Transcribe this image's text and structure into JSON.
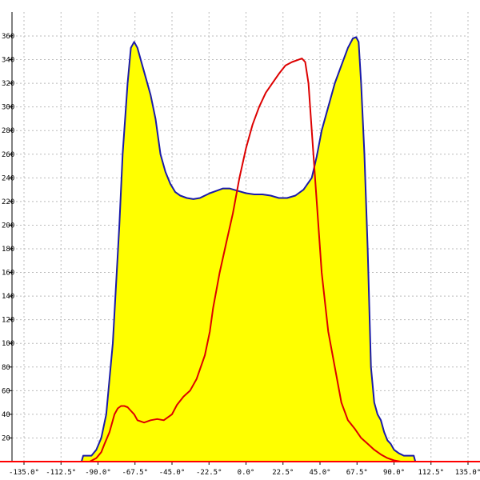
{
  "chart_data": {
    "type": "area",
    "title": "",
    "xlabel": "",
    "ylabel": "",
    "xlim": [
      -135,
      135
    ],
    "ylim": [
      0,
      380
    ],
    "grid": true,
    "x_ticks": [
      "-135.0°",
      "-112.5°",
      "-90.0°",
      "-67.5°",
      "-45.0°",
      "-22.5°",
      "0.0°",
      "22.5°",
      "45.0°",
      "67.5°",
      "90.0°",
      "112.5°",
      "135.0°"
    ],
    "y_ticks": [
      "20",
      "40",
      "60",
      "80",
      "100",
      "120",
      "140",
      "160",
      "180",
      "200",
      "220",
      "240",
      "260",
      "280",
      "300",
      "320",
      "340",
      "360"
    ],
    "series": [
      {
        "color": "#1a1aaa",
        "fill": "#ffff00",
        "x": [
          -100,
          -99,
          -94,
          -91,
          -88,
          -85,
          -81,
          -77,
          -75,
          -72,
          -70,
          -68,
          -66,
          -64,
          -61,
          -58,
          -55,
          -52,
          -49,
          -46,
          -43,
          -40,
          -36,
          -32,
          -28,
          -25,
          -22,
          -18,
          -14,
          -10,
          -5,
          0,
          5,
          10,
          15,
          20,
          25,
          30,
          35,
          40,
          43,
          46,
          50,
          54,
          58,
          62,
          65,
          67,
          68.5,
          70,
          72,
          74,
          76,
          78,
          80,
          82,
          84,
          86,
          88,
          90,
          93,
          96,
          100,
          102,
          103
        ],
        "y": [
          0,
          5,
          5,
          10,
          20,
          40,
          100,
          200,
          260,
          320,
          350,
          355,
          350,
          340,
          325,
          310,
          290,
          260,
          245,
          235,
          228,
          225,
          223,
          222,
          223,
          225,
          227,
          229,
          231,
          231,
          229,
          227,
          226,
          226,
          225,
          223,
          223,
          225,
          230,
          240,
          258,
          280,
          300,
          320,
          335,
          350,
          358,
          359,
          355,
          320,
          260,
          180,
          80,
          50,
          40,
          35,
          25,
          18,
          15,
          10,
          7,
          5,
          5,
          5,
          0
        ]
      },
      {
        "color": "#dd0000",
        "x": [
          -95,
          -91,
          -88,
          -86,
          -83,
          -80,
          -78,
          -76,
          -74,
          -72,
          -70,
          -68,
          -66,
          -62,
          -58,
          -54,
          -50,
          -45,
          -42,
          -38,
          -34,
          -30,
          -25,
          -22,
          -20,
          -16,
          -12,
          -8,
          -4,
          0,
          4,
          8,
          12,
          16,
          20,
          24,
          28,
          32,
          34,
          36,
          38,
          40,
          43,
          46,
          50,
          54,
          58,
          62,
          66,
          70,
          74,
          78,
          82,
          86,
          90,
          94,
          98,
          100
        ],
        "y": [
          0,
          3,
          8,
          15,
          25,
          40,
          45,
          47,
          47,
          46,
          43,
          40,
          35,
          33,
          35,
          36,
          35,
          40,
          48,
          55,
          60,
          70,
          90,
          110,
          130,
          160,
          185,
          210,
          240,
          265,
          285,
          300,
          312,
          320,
          328,
          335,
          338,
          340,
          341,
          338,
          320,
          280,
          220,
          160,
          110,
          80,
          50,
          35,
          28,
          20,
          15,
          10,
          6,
          3,
          1,
          0,
          0,
          0
        ]
      }
    ]
  }
}
